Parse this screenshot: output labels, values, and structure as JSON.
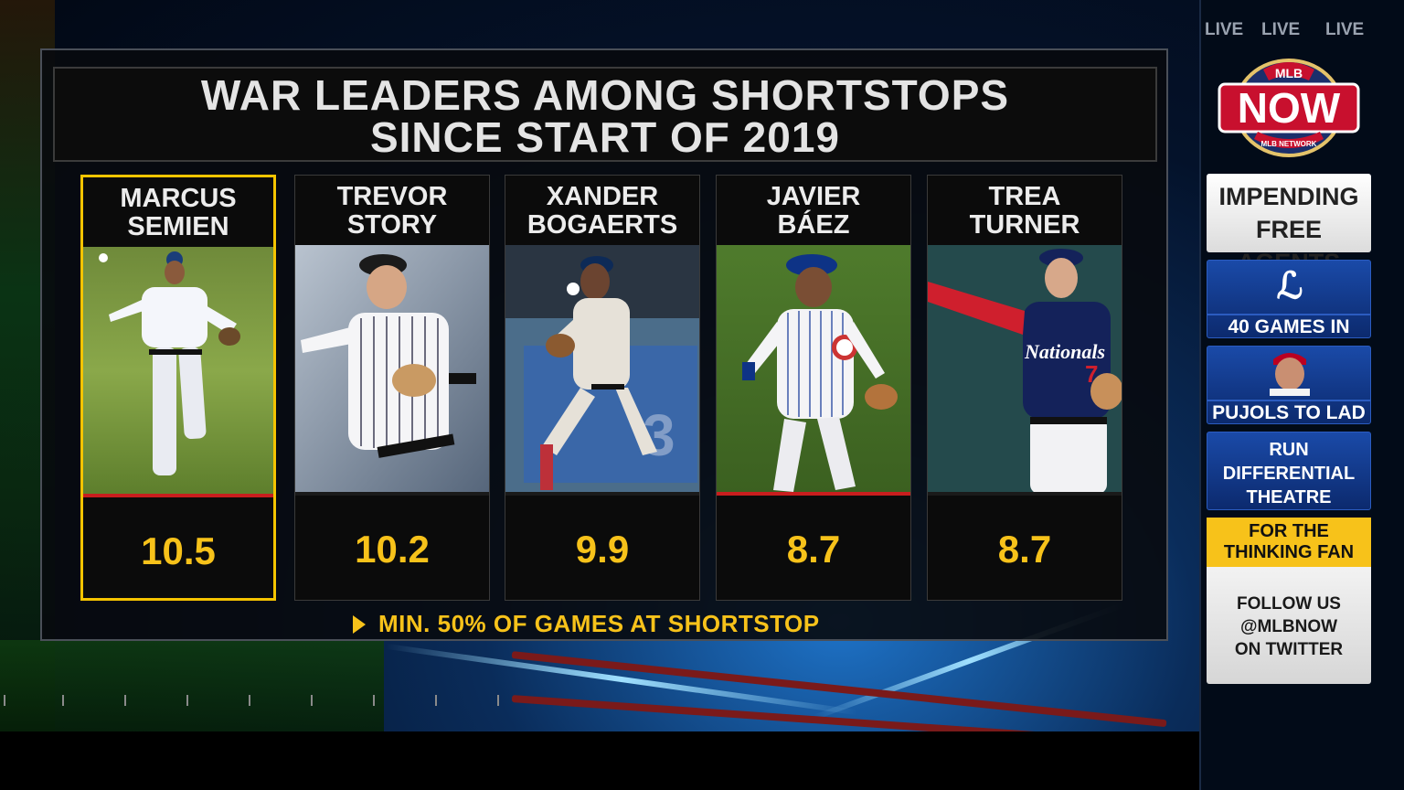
{
  "title": {
    "line1": "WAR LEADERS AMONG SHORTSTOPS",
    "line2": "SINCE START OF 2019"
  },
  "players": [
    {
      "first": "MARCUS",
      "last": "SEMIEN",
      "war": "10.5",
      "highlighted": true,
      "team_color": "#134a8e"
    },
    {
      "first": "TREVOR",
      "last": "STORY",
      "war": "10.2",
      "highlighted": false,
      "team_color": "#33006f"
    },
    {
      "first": "XANDER",
      "last": "BOGAERTS",
      "war": "9.9",
      "highlighted": false,
      "team_color": "#bd3039"
    },
    {
      "first": "JAVIER",
      "last": "BÁEZ",
      "war": "8.7",
      "highlighted": false,
      "team_color": "#0e3386"
    },
    {
      "first": "TREA",
      "last": "TURNER",
      "war": "8.7",
      "highlighted": false,
      "team_color": "#14225a"
    }
  ],
  "footnote": "MIN. 50% OF GAMES AT SHORTSTOP",
  "sidebar": {
    "live_labels": [
      "LIVE",
      "LIVE",
      "LIVE"
    ],
    "logo": {
      "top": "MLB",
      "main": "NOW",
      "bottom": "MLB NETWORK"
    },
    "items": [
      {
        "text1": "IMPENDING",
        "text2": "FREE AGENTS"
      },
      {
        "icon": "la-dodgers-logo-icon",
        "text1": "40 GAMES IN"
      },
      {
        "icon": "player-headshot-icon",
        "text1": "PUJOLS TO LAD"
      },
      {
        "text1": "RUN",
        "text2": "DIFFERENTIAL",
        "text3": "THEATRE"
      },
      {
        "text1": "FOR THE",
        "text2": "THINKING FAN"
      },
      {
        "text1": "FOLLOW US",
        "text2": "@MLBNOW",
        "text3": "ON TWITTER"
      }
    ]
  },
  "colors": {
    "accent_yellow": "#f7c21a",
    "highlight_border": "#f5c400",
    "card_redline": "#c81e1e",
    "sidebar_blue": "#1a4aa8"
  }
}
